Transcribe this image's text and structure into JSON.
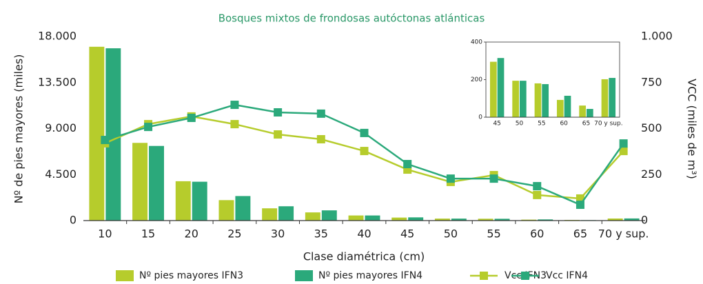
{
  "chart_data": [
    {
      "type": "bar",
      "title": "Bosques mixtos de frondosas autóctonas atlánticas",
      "x_label": "Clase diamétrica (cm)",
      "y_label": "Nº de pies mayores (miles)",
      "y2_label": "VCC (miles de m³)",
      "categories": [
        "10",
        "15",
        "20",
        "25",
        "30",
        "35",
        "40",
        "45",
        "50",
        "55",
        "60",
        "65",
        "70 y sup."
      ],
      "ylim": [
        0,
        18000
      ],
      "yticks": [
        0,
        {
          "value": 4500,
          "label": "4.500"
        },
        {
          "value": 9000,
          "label": "9.000"
        },
        {
          "value": 13500,
          "label": "13.500"
        },
        {
          "value": 18000,
          "label": "18.000"
        }
      ],
      "y2lim": [
        0,
        1000
      ],
      "y2ticks": [
        0,
        250,
        500,
        750,
        {
          "value": 1000,
          "label": "1.000"
        }
      ],
      "legend": "bottom",
      "series": [
        {
          "name": "Nº pies mayores IFN3",
          "type": "bar",
          "color": "#b6cc2c",
          "values": [
            17000,
            7600,
            3850,
            2000,
            1200,
            800,
            500,
            295,
            194,
            180,
            92,
            62,
            202
          ]
        },
        {
          "name": "Nº pies mayores IFN4",
          "type": "bar",
          "color": "#2ba97b",
          "values": [
            16850,
            7300,
            3800,
            2400,
            1400,
            1000,
            500,
            315,
            194,
            176,
            114,
            44,
            209
          ]
        },
        {
          "name": "Vcc IFN3",
          "type": "line",
          "axis": "y2",
          "color": "#b6cc2c",
          "values": [
            420,
            524,
            566,
            524,
            468,
            442,
            378,
            277,
            210,
            247,
            139,
            120,
            378
          ]
        },
        {
          "name": "Vcc IFN4",
          "type": "line",
          "axis": "y2",
          "color": "#2ba97b",
          "values": [
            438,
            509,
            558,
            629,
            588,
            581,
            476,
            307,
            228,
            228,
            187,
            86,
            419
          ]
        }
      ]
    },
    {
      "type": "bar",
      "categories": [
        "45",
        "50",
        "55",
        "60",
        "65",
        "70 y sup."
      ],
      "ylim": [
        0,
        400
      ],
      "yticks": [
        0,
        200,
        400
      ],
      "series": [
        {
          "color": "#b6cc2c",
          "values": [
            295,
            194,
            180,
            92,
            62,
            202
          ]
        },
        {
          "color": "#2ba97b",
          "values": [
            315,
            194,
            176,
            114,
            44,
            209
          ]
        }
      ]
    }
  ]
}
